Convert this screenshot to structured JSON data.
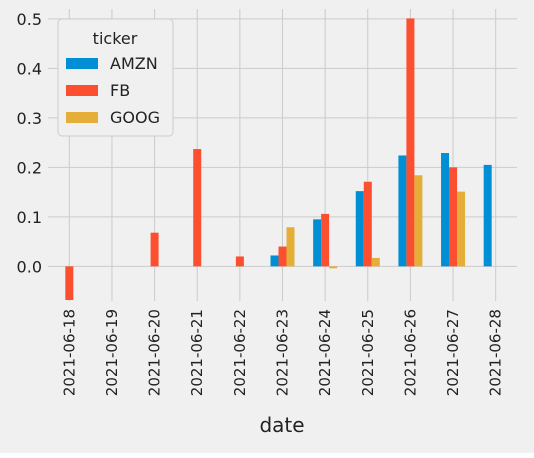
{
  "chart_data": {
    "type": "bar",
    "xlabel": "date",
    "ylabel": "",
    "categories": [
      "2021-06-18",
      "2021-06-19",
      "2021-06-20",
      "2021-06-21",
      "2021-06-22",
      "2021-06-23",
      "2021-06-24",
      "2021-06-25",
      "2021-06-26",
      "2021-06-27",
      "2021-06-28"
    ],
    "ylim": [
      -0.07,
      0.52
    ],
    "yticks": [
      0.0,
      0.1,
      0.2,
      0.3,
      0.4,
      0.5
    ],
    "ytick_labels": [
      "0.0",
      "0.1",
      "0.2",
      "0.3",
      "0.4",
      "0.5"
    ],
    "grid": true,
    "legend": {
      "title": "ticker",
      "placement": "top-left"
    },
    "series": [
      {
        "name": "AMZN",
        "color": "#008fd5",
        "values": [
          null,
          null,
          null,
          null,
          null,
          0.022,
          0.095,
          0.152,
          0.224,
          0.229,
          0.205
        ]
      },
      {
        "name": "FB",
        "color": "#fc4f30",
        "values": [
          -0.068,
          null,
          0.068,
          0.237,
          0.02,
          0.04,
          0.106,
          0.171,
          0.501,
          0.2,
          null
        ]
      },
      {
        "name": "GOOG",
        "color": "#e5ae38",
        "values": [
          null,
          null,
          null,
          null,
          null,
          0.079,
          -0.004,
          0.017,
          0.184,
          0.151,
          null
        ]
      }
    ]
  }
}
